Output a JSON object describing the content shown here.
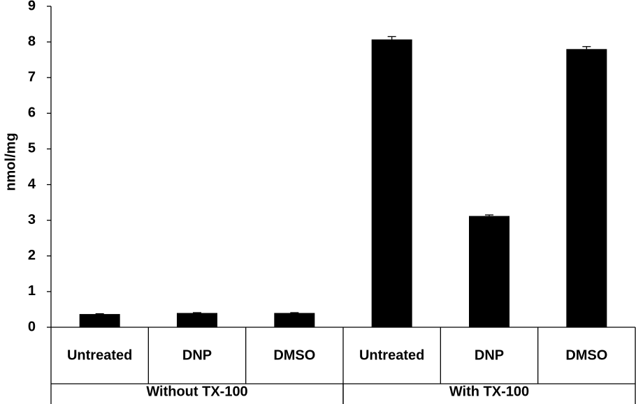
{
  "chart_data": {
    "type": "bar",
    "y_label": "nmol/mg",
    "categories": [
      "Untreated",
      "DNP",
      "DMSO",
      "Untreated",
      "DNP",
      "DMSO"
    ],
    "group_labels": [
      "Without TX-100",
      "With TX-100"
    ],
    "values": [
      0.37,
      0.4,
      0.4,
      8.07,
      3.12,
      7.8
    ],
    "errors": [
      0.01,
      0.01,
      0.01,
      0.08,
      0.03,
      0.07
    ],
    "color": "#000000",
    "ylim": [
      0,
      9
    ],
    "yticks": [
      0,
      1,
      2,
      3,
      4,
      5,
      6,
      7,
      8,
      9
    ]
  }
}
